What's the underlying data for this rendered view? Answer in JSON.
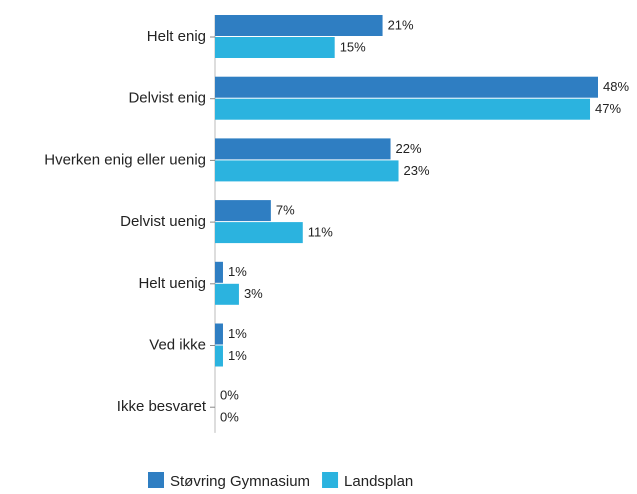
{
  "chart_data": {
    "type": "bar",
    "orientation": "horizontal",
    "categories": [
      "Helt enig",
      "Delvist enig",
      "Hverken enig eller uenig",
      "Delvist uenig",
      "Helt uenig",
      "Ved ikke",
      "Ikke besvaret"
    ],
    "series": [
      {
        "name": "Støvring Gymnasium",
        "color": "#2f7ec2",
        "values": [
          21,
          48,
          22,
          7,
          1,
          1,
          0
        ],
        "value_labels": [
          "21%",
          "48%",
          "22%",
          "7%",
          "1%",
          "1%",
          "0%"
        ]
      },
      {
        "name": "Landsplan",
        "color": "#2bb3df",
        "values": [
          15,
          47,
          23,
          11,
          3,
          1,
          0
        ],
        "value_labels": [
          "15%",
          "47%",
          "23%",
          "11%",
          "3%",
          "1%",
          "0%"
        ]
      }
    ],
    "legend": "bottom"
  }
}
